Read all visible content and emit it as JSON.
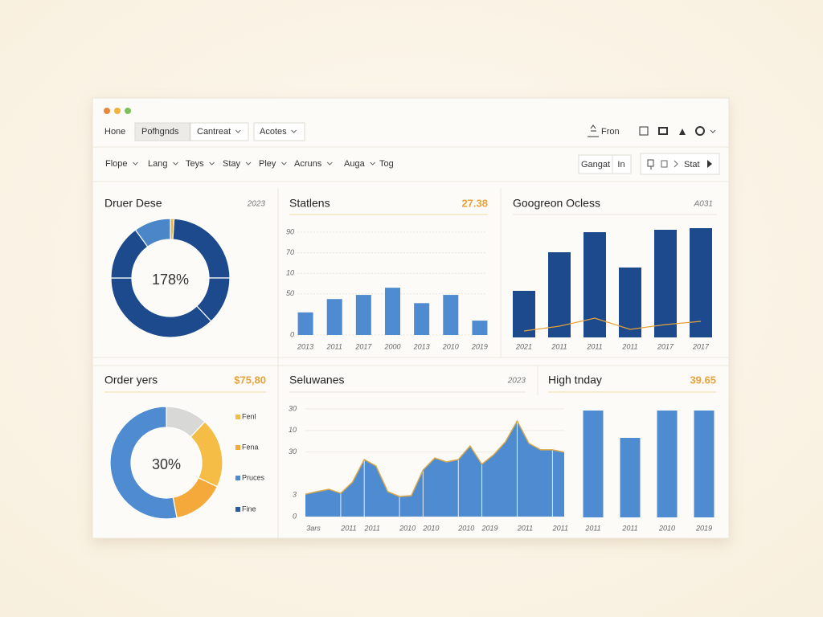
{
  "window": {
    "nav": [
      "Hone",
      "Pofhgnds",
      "Cantreat",
      "Acotes"
    ],
    "nav_right": "Fron",
    "filters": [
      "Flope",
      "Lang",
      "Teys",
      "Stay",
      "Pley",
      "Acruns",
      "Auga",
      "Tog"
    ],
    "buttons": [
      "Gangat",
      "In"
    ],
    "search": "Stat"
  },
  "chart_data": [
    {
      "type": "donut",
      "title": "Druer Dese",
      "badge": "2023",
      "center_label": "178%",
      "values": [
        1,
        24,
        13,
        37,
        15,
        10
      ],
      "colors": [
        "#f0b43c",
        "#1c4a8c",
        "#1c4a8c",
        "#1c4a8c",
        "#1c4a8c",
        "#4a86c8"
      ]
    },
    {
      "type": "bar",
      "title": "Statlens",
      "badge": "27.38",
      "categories": [
        "2013",
        "2011",
        "2017",
        "2000",
        "2013",
        "2010",
        "2019"
      ],
      "values": [
        22,
        35,
        39,
        46,
        31,
        39,
        14
      ],
      "color": "#4f8bd0",
      "ylim": [
        0,
        100
      ],
      "yticks": [
        0,
        {
          "value": 40,
          "label": "50"
        },
        {
          "value": 60,
          "label": "10"
        },
        {
          "value": 80,
          "label": "70"
        },
        {
          "value": 100,
          "label": "90"
        }
      ],
      "grid": true
    },
    {
      "type": "bar",
      "title": "Googreon Ocless",
      "badge": "A031",
      "categories": [
        "2021",
        "2011",
        "2011",
        "2011",
        "2017",
        "2017"
      ],
      "values": [
        58,
        106,
        131,
        87,
        134,
        136
      ],
      "color": "#1c4a8c",
      "line": {
        "values": [
          8,
          14,
          24,
          10,
          16,
          20
        ],
        "color": "#e8a23a"
      },
      "ylim": [
        0,
        140
      ],
      "grid": false
    },
    {
      "type": "donut",
      "title": "Order yers",
      "badge": "$75,80",
      "center_label": "30%",
      "categories": [
        "Fenl",
        "Fena",
        "Pruces",
        "Fine"
      ],
      "values": [
        20,
        15,
        53,
        12
      ],
      "colors": [
        "#f5bd45",
        "#f5a93a",
        "#4f8bd0",
        "#d8d8d6"
      ],
      "legend_colors": [
        "#f5bd45",
        "#f5a93a",
        "#4f8bd0",
        "#2a5aa0"
      ],
      "start_index": 3
    },
    {
      "type": "area",
      "title": "Seluwanes",
      "badge": "2023",
      "categories": [
        "3ars",
        null,
        null,
        "2011",
        null,
        "2011",
        null,
        null,
        "2010",
        null,
        "2010",
        null,
        null,
        "2010",
        null,
        "2019",
        null,
        null,
        "2011",
        null,
        null,
        "2011",
        null
      ],
      "values": [
        10.4,
        11.6,
        12.7,
        10.8,
        16,
        26.5,
        23.5,
        11.6,
        9.3,
        9.7,
        21.6,
        27.2,
        25.4,
        26.5,
        32.8,
        24.3,
        28.7,
        34.7,
        44.4,
        34,
        31,
        31,
        29.9
      ],
      "color": "#4f8bd0",
      "line_color": "#d9a94a",
      "ylim": [
        0,
        50
      ],
      "yticks": [
        0,
        {
          "value": 10,
          "label": "3"
        },
        {
          "value": 30,
          "label": "30"
        },
        {
          "value": 40,
          "label": "10"
        },
        {
          "value": 50,
          "label": "30"
        }
      ],
      "grid": true
    },
    {
      "type": "bar",
      "title": "High tnday",
      "badge": "39.65",
      "categories": [
        "2011",
        "2011",
        "2010",
        "2019"
      ],
      "values": [
        133,
        99,
        133,
        133
      ],
      "color": "#4f8bd0",
      "ylim": [
        0,
        140
      ],
      "grid": false
    }
  ]
}
